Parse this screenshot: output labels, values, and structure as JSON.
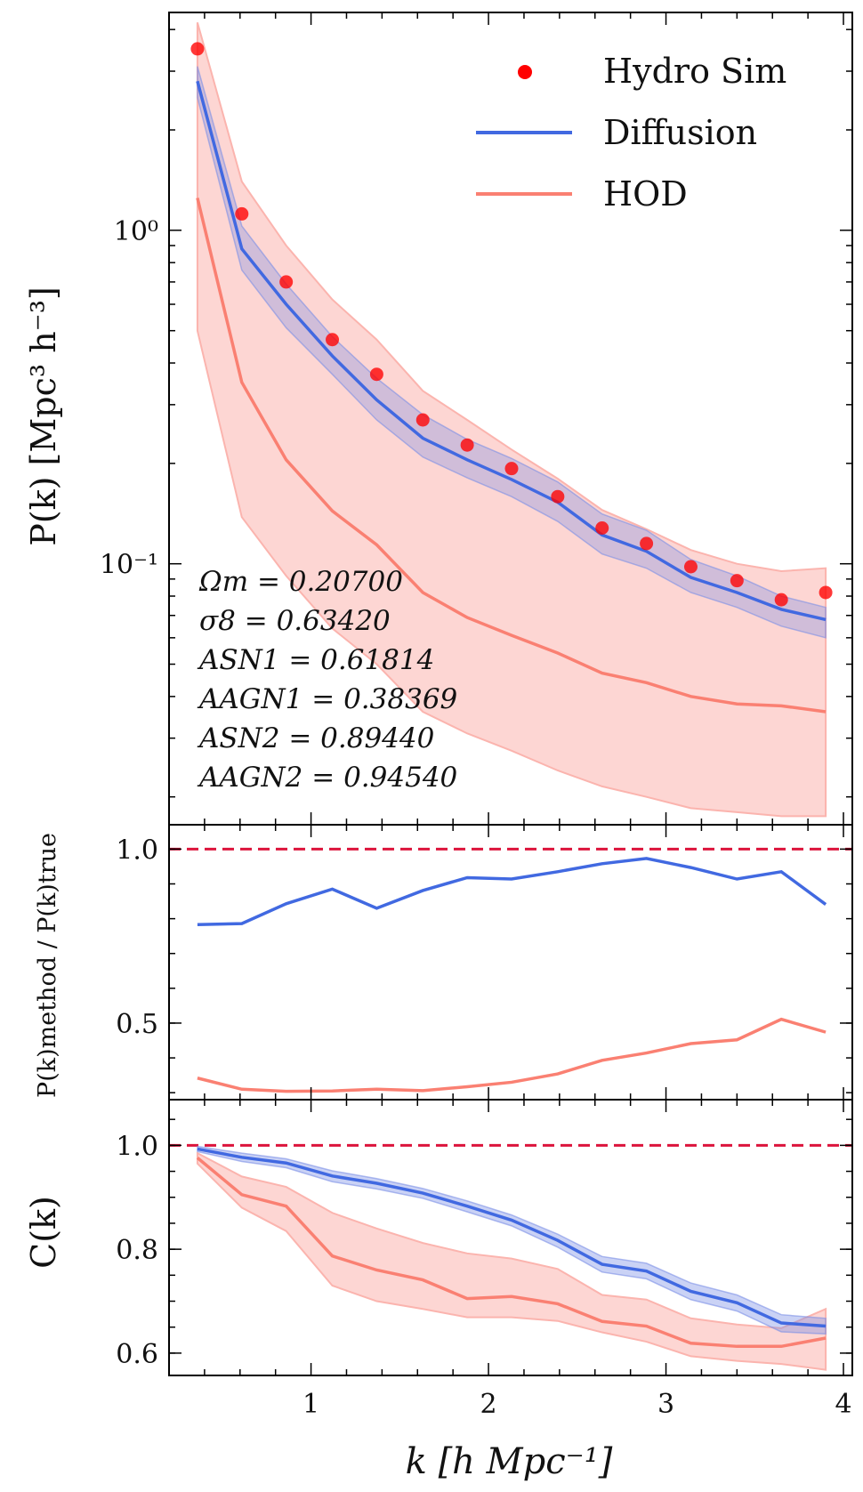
{
  "colors": {
    "hydro": "#ff0000",
    "diffusion": "#4169e1",
    "hod": "#fa8072",
    "hod_band": "#fbb4ae",
    "diffusion_band": "#7b8fe6",
    "reference_line": "#dc143c",
    "axes": "#000000"
  },
  "chart_data": [
    {
      "id": "power_spectrum",
      "type": "line",
      "yscale": "log",
      "ylabel": "P(k) [Mpc³ h⁻³]",
      "xlim": [
        0.2,
        4.05
      ],
      "ylim": [
        0.0165,
        4.5
      ],
      "yticks": [
        {
          "value": 1.0,
          "label": "10⁰"
        },
        {
          "value": 0.1,
          "label": "10⁻¹"
        }
      ],
      "x": [
        0.36,
        0.61,
        0.86,
        1.12,
        1.37,
        1.63,
        1.88,
        2.13,
        2.39,
        2.64,
        2.89,
        3.14,
        3.4,
        3.65,
        3.9
      ],
      "hydro_sim": [
        3.5,
        1.12,
        0.7,
        0.47,
        0.37,
        0.27,
        0.227,
        0.193,
        0.159,
        0.128,
        0.115,
        0.098,
        0.089,
        0.078,
        0.082
      ],
      "diffusion": {
        "mean": [
          2.8,
          0.88,
          0.6,
          0.42,
          0.31,
          0.238,
          0.205,
          0.179,
          0.153,
          0.122,
          0.109,
          0.091,
          0.082,
          0.073,
          0.068
        ],
        "upper": [
          3.1,
          1.03,
          0.69,
          0.48,
          0.36,
          0.28,
          0.236,
          0.207,
          0.176,
          0.141,
          0.126,
          0.103,
          0.092,
          0.08,
          0.074
        ],
        "lower": [
          2.5,
          0.76,
          0.51,
          0.37,
          0.27,
          0.209,
          0.181,
          0.159,
          0.134,
          0.107,
          0.097,
          0.082,
          0.074,
          0.065,
          0.06
        ]
      },
      "hod": {
        "mean": [
          1.25,
          0.35,
          0.205,
          0.144,
          0.114,
          0.082,
          0.069,
          0.061,
          0.054,
          0.047,
          0.044,
          0.04,
          0.038,
          0.0375,
          0.036
        ],
        "upper": [
          4.2,
          1.4,
          0.9,
          0.62,
          0.47,
          0.33,
          0.27,
          0.22,
          0.18,
          0.145,
          0.127,
          0.11,
          0.1,
          0.095,
          0.097
        ],
        "lower": [
          0.5,
          0.138,
          0.092,
          0.064,
          0.05,
          0.036,
          0.031,
          0.0275,
          0.024,
          0.0215,
          0.02,
          0.0185,
          0.018,
          0.0175,
          0.0175
        ]
      },
      "legend": {
        "position": "top-right",
        "entries": [
          {
            "key": "hydro",
            "label": "Hydro Sim",
            "marker": "dot"
          },
          {
            "key": "diffusion",
            "label": "Diffusion",
            "marker": "line"
          },
          {
            "key": "hod",
            "label": "HOD",
            "marker": "line"
          }
        ]
      },
      "annotation": [
        "Ωm = 0.20700",
        "σ8 = 0.63420",
        "ASN1 = 0.61814",
        "AAGN1 = 0.38369",
        "ASN2 = 0.89440",
        "AAGN2 = 0.94540"
      ]
    },
    {
      "id": "ratio",
      "type": "line",
      "ylabel": "P(k)method / P(k)true",
      "xlim": [
        0.2,
        4.05
      ],
      "ylim": [
        0.28,
        1.07
      ],
      "yticks": [
        {
          "value": 0.5,
          "label": "0.5"
        },
        {
          "value": 1.0,
          "label": "1.0"
        }
      ],
      "reference": 1.0,
      "x": [
        0.36,
        0.61,
        0.86,
        1.12,
        1.37,
        1.63,
        1.88,
        2.13,
        2.39,
        2.64,
        2.89,
        3.14,
        3.4,
        3.65,
        3.9
      ],
      "diffusion": [
        0.783,
        0.786,
        0.843,
        0.885,
        0.83,
        0.881,
        0.918,
        0.914,
        0.935,
        0.958,
        0.973,
        0.947,
        0.914,
        0.935,
        0.841
      ],
      "hod": [
        0.342,
        0.31,
        0.304,
        0.305,
        0.31,
        0.306,
        0.317,
        0.33,
        0.354,
        0.393,
        0.414,
        0.441,
        0.452,
        0.511,
        0.474
      ]
    },
    {
      "id": "correlation",
      "type": "line",
      "ylabel": "C(k)",
      "xlim": [
        0.2,
        4.05
      ],
      "ylim": [
        0.557,
        1.088
      ],
      "yticks": [
        {
          "value": 0.6,
          "label": "0.6"
        },
        {
          "value": 0.8,
          "label": "0.8"
        },
        {
          "value": 1.0,
          "label": "1.0"
        }
      ],
      "reference": 1.0,
      "xlabel": "k [h Mpc⁻¹]",
      "xticks": [
        {
          "value": 1,
          "label": "1"
        },
        {
          "value": 2,
          "label": "2"
        },
        {
          "value": 3,
          "label": "3"
        },
        {
          "value": 4,
          "label": "4"
        }
      ],
      "x": [
        0.36,
        0.61,
        0.86,
        1.12,
        1.37,
        1.63,
        1.88,
        2.13,
        2.39,
        2.64,
        2.89,
        3.14,
        3.4,
        3.65,
        3.9
      ],
      "diffusion": {
        "mean": [
          0.993,
          0.977,
          0.966,
          0.941,
          0.927,
          0.908,
          0.883,
          0.856,
          0.817,
          0.771,
          0.758,
          0.719,
          0.697,
          0.658,
          0.652
        ],
        "upper": [
          0.998,
          0.985,
          0.974,
          0.951,
          0.936,
          0.917,
          0.893,
          0.866,
          0.829,
          0.786,
          0.773,
          0.735,
          0.712,
          0.674,
          0.667
        ],
        "lower": [
          0.988,
          0.969,
          0.957,
          0.93,
          0.916,
          0.898,
          0.872,
          0.845,
          0.804,
          0.756,
          0.743,
          0.703,
          0.681,
          0.641,
          0.637
        ]
      },
      "hod": {
        "mean": [
          0.976,
          0.905,
          0.883,
          0.787,
          0.76,
          0.741,
          0.705,
          0.709,
          0.695,
          0.661,
          0.652,
          0.619,
          0.613,
          0.613,
          0.629
        ],
        "upper": [
          0.985,
          0.94,
          0.92,
          0.87,
          0.84,
          0.812,
          0.792,
          0.782,
          0.762,
          0.712,
          0.703,
          0.667,
          0.655,
          0.648,
          0.685
        ],
        "lower": [
          0.965,
          0.88,
          0.835,
          0.73,
          0.7,
          0.685,
          0.669,
          0.669,
          0.662,
          0.64,
          0.622,
          0.594,
          0.585,
          0.579,
          0.568
        ]
      }
    }
  ]
}
